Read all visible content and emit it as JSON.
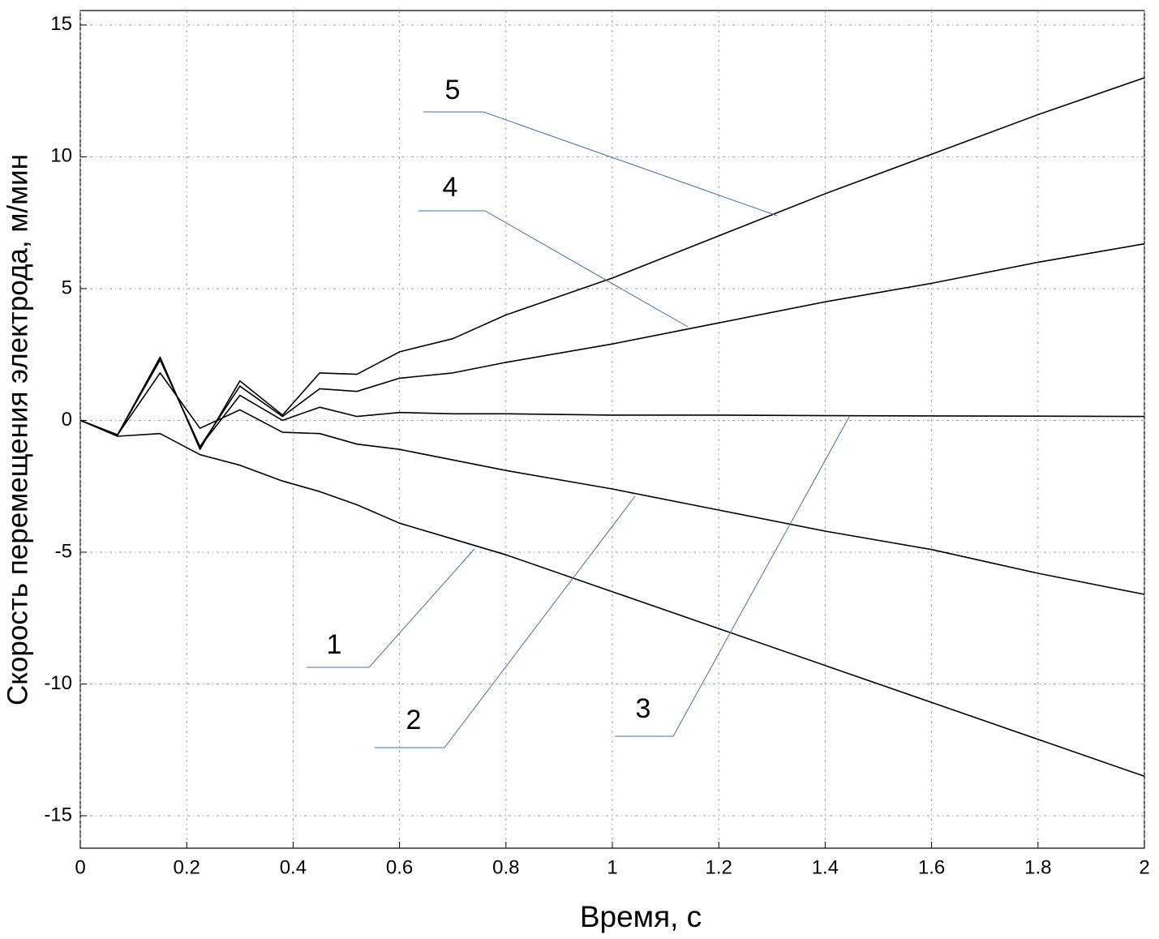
{
  "chart_data": {
    "type": "line",
    "xlabel": "Время, с",
    "ylabel": "Скорость перемещения электрода, м/мин",
    "x": [
      0,
      0.07,
      0.15,
      0.225,
      0.3,
      0.38,
      0.45,
      0.52,
      0.6,
      0.7,
      0.8,
      1,
      1.2,
      1.4,
      1.6,
      1.8,
      2
    ],
    "series": [
      {
        "name": "1",
        "color": "#000000",
        "values": [
          0,
          -0.6,
          -0.5,
          -1.3,
          -1.7,
          -2.3,
          -2.7,
          -3.2,
          -3.9,
          -4.5,
          -5.1,
          -6.5,
          -7.9,
          -9.3,
          -10.7,
          -12.1,
          -13.5
        ]
      },
      {
        "name": "2",
        "color": "#000000",
        "values": [
          0,
          -0.55,
          1.8,
          -0.3,
          0.4,
          -0.45,
          -0.5,
          -0.9,
          -1.1,
          -1.5,
          -1.9,
          -2.6,
          -3.4,
          -4.2,
          -4.9,
          -5.8,
          -6.6
        ]
      },
      {
        "name": "3",
        "color": "#000000",
        "values": [
          0,
          -0.55,
          2.3,
          -1.0,
          0.95,
          0.0,
          0.5,
          0.15,
          0.3,
          0.25,
          0.25,
          0.2,
          0.2,
          0.18,
          0.17,
          0.16,
          0.15
        ]
      },
      {
        "name": "4",
        "color": "#000000",
        "values": [
          0,
          -0.55,
          2.3,
          -1.0,
          1.3,
          0.15,
          1.2,
          1.1,
          1.6,
          1.8,
          2.2,
          2.9,
          3.7,
          4.5,
          5.2,
          6.0,
          6.7
        ]
      },
      {
        "name": "5",
        "color": "#000000",
        "values": [
          0,
          -0.55,
          2.4,
          -1.1,
          1.5,
          0.2,
          1.8,
          1.75,
          2.6,
          3.1,
          4.0,
          5.4,
          7.0,
          8.6,
          10.1,
          11.6,
          13.0
        ]
      }
    ],
    "xlim": [
      0,
      2
    ],
    "xticks": [
      0,
      0.2,
      0.4,
      0.6,
      0.8,
      1,
      1.2,
      1.4,
      1.6,
      1.8,
      2
    ],
    "ylim": [
      -16.23,
      15.55
    ],
    "yticks": [
      -15,
      -10,
      -5,
      0,
      5,
      10,
      15
    ],
    "grid": true,
    "annotations": [
      "1",
      "2",
      "3",
      "4",
      "5"
    ]
  }
}
